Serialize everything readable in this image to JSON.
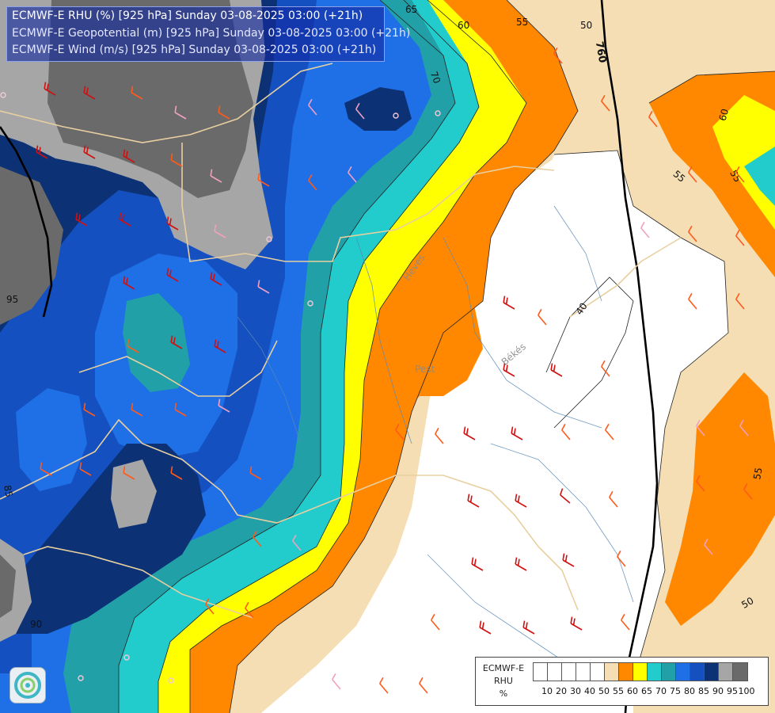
{
  "header": {
    "line1": "ECMWF-E RHU (%) [925 hPa] Sunday 03-08-2025 03:00 (+21h)",
    "line2": "ECMWF-E Geopotential (m) [925 hPa] Sunday 03-08-2025 03:00 (+21h)",
    "line3": "ECMWF-E Wind (m/s) [925 hPa] Sunday 03-08-2025 03:00 (+21h)"
  },
  "legend": {
    "title_line1": "ECMWF-E",
    "title_line2": "RHU",
    "title_line3": "%",
    "ticks": [
      "10",
      "20",
      "30",
      "40",
      "50",
      "55",
      "60",
      "65",
      "70",
      "75",
      "80",
      "85",
      "90",
      "95",
      "100"
    ],
    "colors": [
      "#ffffff",
      "#ffffff",
      "#ffffff",
      "#ffffff",
      "#ffffff",
      "#f5deb3",
      "#ff8800",
      "#ffff00",
      "#22cccc",
      "#22a0a8",
      "#1f6fe6",
      "#1450c0",
      "#0c3275",
      "#a6a6a6",
      "#6a6a6a"
    ]
  },
  "map_labels": {
    "place_pest": "Pest",
    "place_bekes": "Békés",
    "place_heves": "Heves"
  },
  "contour_labels": {
    "geo_760": "760",
    "rh_65_top": "65",
    "rh_70": "70",
    "rh_60_top": "60",
    "rh_55_top": "55",
    "rh_50_top": "50",
    "rh_60_right": "60",
    "rh_55_right": "55",
    "rh_55_far": "55",
    "rh_40": "40",
    "rh_95": "95",
    "rh_85": "85",
    "rh_90": "90",
    "rh_55_lower": "55",
    "rh_50_lower": "50"
  },
  "icons": {
    "logo": "ecmwf-swirl-logo-icon"
  }
}
